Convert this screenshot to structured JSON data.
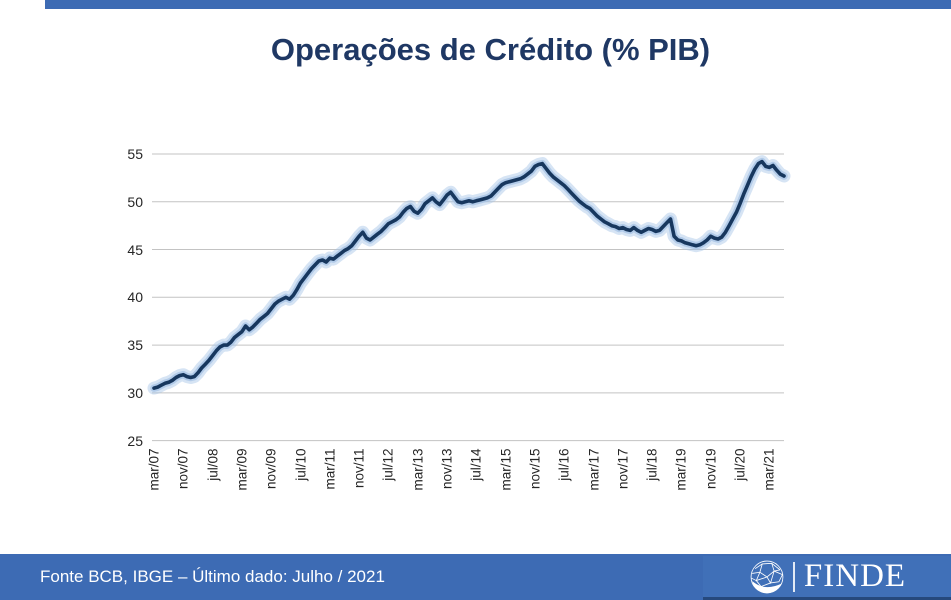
{
  "colors": {
    "accent_bar_blue": "#3D6BB4",
    "logo_panel_blue": "#4070B8",
    "logo_panel_border": "#26497D",
    "title_navy": "#1F3864",
    "line_navy": "#17375E",
    "line_glow": "#A5C3E6",
    "gridline_gray": "#C3C3C3",
    "axis_text": "#262626",
    "footer_text": "#FFFFFF"
  },
  "header": {
    "title": "Operações de Crédito (% PIB)"
  },
  "footer": {
    "source_text": "Fonte BCB, IBGE – Último dado: Julho / 2021",
    "logo_text": "FINDE",
    "logo_icon": "globe-network-icon"
  },
  "chart_data": {
    "type": "line",
    "title": "Operações de Crédito (% PIB)",
    "xlabel": "",
    "ylabel": "",
    "ylim": [
      25,
      55
    ],
    "y_ticks": [
      25,
      30,
      35,
      40,
      45,
      50,
      55
    ],
    "grid": "horizontal",
    "legend": "none",
    "x_start": "mar/07",
    "x_end": "jul/21",
    "x_frequency": "monthly",
    "x_tick_labels": [
      "mar/07",
      "nov/07",
      "jul/08",
      "mar/09",
      "nov/09",
      "jul/10",
      "mar/11",
      "nov/11",
      "jul/12",
      "mar/13",
      "nov/13",
      "jul/14",
      "mar/15",
      "nov/15",
      "jul/16",
      "mar/17",
      "nov/17",
      "jul/18",
      "mar/19",
      "nov/19",
      "jul/20",
      "mar/21"
    ],
    "x_tick_month_indices": [
      0,
      8,
      16,
      24,
      32,
      40,
      48,
      56,
      64,
      72,
      80,
      88,
      96,
      104,
      112,
      120,
      128,
      136,
      144,
      152,
      160,
      168
    ],
    "series": [
      {
        "name": "Operações de Crédito (% PIB)",
        "values": [
          30.5,
          30.6,
          30.8,
          31.0,
          31.1,
          31.3,
          31.6,
          31.8,
          31.9,
          31.7,
          31.6,
          31.7,
          32.1,
          32.6,
          33.0,
          33.4,
          33.9,
          34.4,
          34.8,
          35.0,
          35.0,
          35.3,
          35.8,
          36.1,
          36.4,
          37.0,
          36.6,
          36.9,
          37.3,
          37.7,
          38.0,
          38.3,
          38.8,
          39.3,
          39.6,
          39.8,
          40.0,
          39.8,
          40.2,
          40.8,
          41.5,
          42.0,
          42.5,
          43.0,
          43.4,
          43.8,
          43.9,
          43.7,
          44.1,
          44.0,
          44.3,
          44.6,
          44.9,
          45.1,
          45.4,
          45.9,
          46.4,
          46.8,
          46.2,
          46.0,
          46.3,
          46.6,
          46.9,
          47.3,
          47.7,
          47.9,
          48.1,
          48.4,
          48.9,
          49.3,
          49.5,
          49.0,
          48.8,
          49.2,
          49.8,
          50.1,
          50.4,
          50.0,
          49.7,
          50.2,
          50.7,
          51.0,
          50.5,
          50.0,
          49.9,
          50.0,
          50.1,
          50.0,
          50.1,
          50.2,
          50.3,
          50.4,
          50.6,
          51.0,
          51.4,
          51.8,
          52.0,
          52.1,
          52.2,
          52.3,
          52.4,
          52.6,
          52.9,
          53.2,
          53.7,
          53.9,
          54.0,
          53.5,
          53.0,
          52.6,
          52.3,
          52.0,
          51.7,
          51.3,
          50.9,
          50.5,
          50.1,
          49.8,
          49.5,
          49.3,
          48.9,
          48.5,
          48.2,
          47.9,
          47.7,
          47.5,
          47.4,
          47.2,
          47.3,
          47.1,
          47.0,
          47.3,
          47.0,
          46.8,
          47.0,
          47.2,
          47.1,
          46.9,
          47.0,
          47.4,
          47.8,
          48.2,
          46.4,
          46.0,
          45.9,
          45.7,
          45.6,
          45.5,
          45.4,
          45.5,
          45.7,
          46.0,
          46.4,
          46.2,
          46.1,
          46.3,
          46.8,
          47.5,
          48.2,
          48.9,
          49.8,
          50.8,
          51.7,
          52.6,
          53.4,
          54.0,
          54.2,
          53.7,
          53.6,
          53.8,
          53.3,
          52.9,
          52.7
        ]
      }
    ]
  }
}
